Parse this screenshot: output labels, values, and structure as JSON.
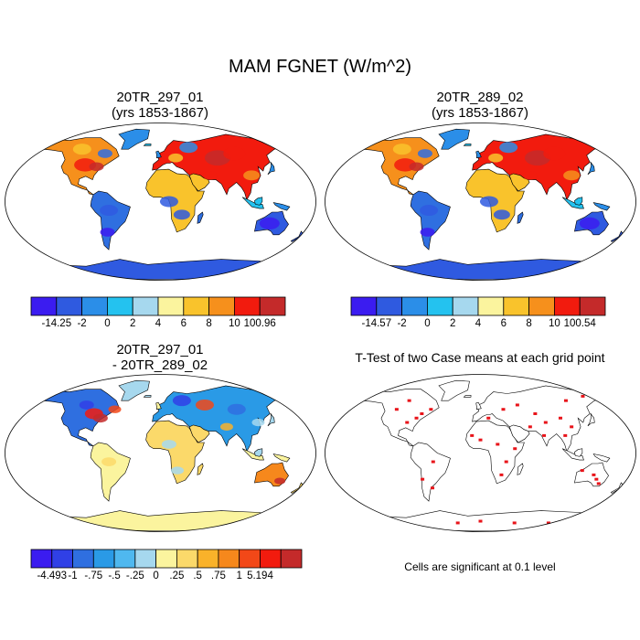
{
  "figure_title": "MAM FGNET (W/m^2)",
  "panels": [
    {
      "id": "a",
      "title_lines": [
        "20TR_297_01",
        "(yrs 1853-1867)"
      ],
      "colorbar": {
        "colors": [
          "#3b1cf0",
          "#2f5ae0",
          "#2b8ee8",
          "#24c2ef",
          "#a6d8ee",
          "#fbf49e",
          "#f9c32c",
          "#f6901c",
          "#f21b0e",
          "#c42a2a"
        ],
        "labels": [
          "-14.25",
          "-2",
          "0",
          "2",
          "4",
          "6",
          "8",
          "10",
          "100.96"
        ]
      }
    },
    {
      "id": "b",
      "title_lines": [
        "20TR_289_02",
        "(yrs 1853-1867)"
      ],
      "colorbar": {
        "colors": [
          "#3b1cf0",
          "#2f5ae0",
          "#2b8ee8",
          "#24c2ef",
          "#a6d8ee",
          "#fbf49e",
          "#f9c32c",
          "#f6901c",
          "#f21b0e",
          "#c42a2a"
        ],
        "labels": [
          "-14.57",
          "-2",
          "0",
          "2",
          "4",
          "6",
          "8",
          "10",
          "100.54"
        ]
      }
    },
    {
      "id": "c",
      "title_lines": [
        "20TR_297_01",
        "- 20TR_289_02"
      ],
      "colorbar": {
        "colors": [
          "#3b1cf0",
          "#3040e6",
          "#2f6fe0",
          "#2a9ae6",
          "#4fb8ef",
          "#a6d8ee",
          "#fbf49e",
          "#fbd96a",
          "#f9b22a",
          "#f6881c",
          "#f24818",
          "#f21b0e",
          "#c42a2a"
        ],
        "labels": [
          "-4.493",
          "-1",
          "-.75",
          "-.5",
          "-.25",
          "0",
          ".25",
          ".5",
          ".75",
          "1",
          "5.194"
        ]
      }
    },
    {
      "id": "d",
      "title_lines": [
        "T-Test of two Case means at each grid point"
      ],
      "note": "Cells are significant at 0.1 level"
    }
  ]
}
